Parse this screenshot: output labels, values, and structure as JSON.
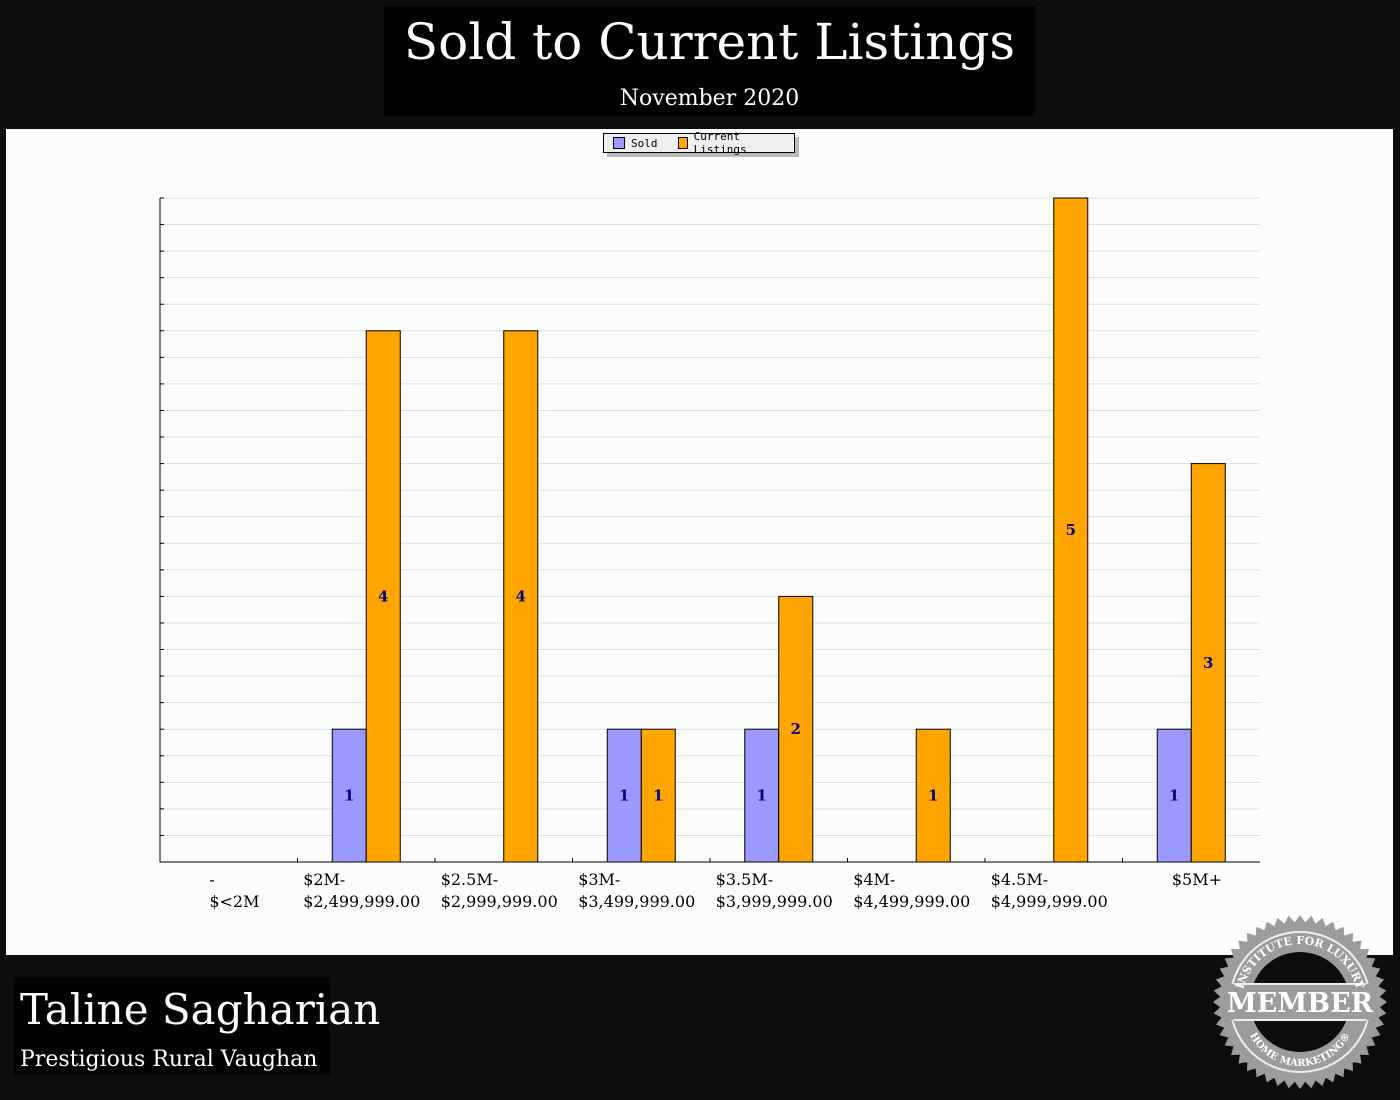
{
  "header": {
    "title": "Sold to Current Listings",
    "subtitle": "November 2020"
  },
  "footer": {
    "agent_name": "Taline Sagharian",
    "company": "Prestigious Rural Vaughan",
    "badge_text": [
      "INSTITUTE FOR LUXURY",
      "MEMBER",
      "HOME MARKETING®"
    ]
  },
  "chart_data": {
    "type": "bar",
    "title": "Sold to Current Listings",
    "subtitle": "November 2020",
    "categories": [
      [
        "-",
        "$<2M"
      ],
      [
        "$2M-",
        "$2,499,999.00"
      ],
      [
        "$2.5M-",
        "$2,999,999.00"
      ],
      [
        "$3M-",
        "$3,499,999.00"
      ],
      [
        "$3.5M-",
        "$3,999,999.00"
      ],
      [
        "$4M-",
        "$4,499,999.00"
      ],
      [
        "$4.5M-",
        "$4,999,999.00"
      ],
      [
        "$5M+"
      ]
    ],
    "series": [
      {
        "name": "Sold",
        "color": "#9999ff",
        "values": [
          0,
          1,
          0,
          1,
          1,
          0,
          0,
          1
        ]
      },
      {
        "name": "Current Listings",
        "color": "#ffa500",
        "values": [
          0,
          4,
          4,
          1,
          2,
          1,
          5,
          3
        ]
      }
    ],
    "ylim": [
      0,
      5
    ],
    "grid": true,
    "y_tick_labels": false,
    "legend": "top-center",
    "data_label_color": "#000080"
  }
}
